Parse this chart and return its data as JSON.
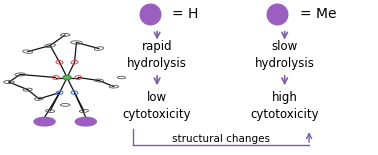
{
  "background_color": "#ffffff",
  "arrow_color": "#7B5EA7",
  "bracket_color": "#7B5EA7",
  "sphere_color": "#9B5FBF",
  "sphere_large_size": 220,
  "text_color": "#000000",
  "legend": [
    {
      "label": "= H"
    },
    {
      "label": "= Me"
    }
  ],
  "col1_text1": [
    "rapid",
    "hydrolysis"
  ],
  "col2_text1": [
    "slow",
    "hydrolysis"
  ],
  "col1_text2": [
    "low",
    "cytotoxicity"
  ],
  "col2_text2": [
    "high",
    "cytotoxicity"
  ],
  "structural_label": "structural changes",
  "fontsize_main": 8.5,
  "fontsize_legend": 10
}
